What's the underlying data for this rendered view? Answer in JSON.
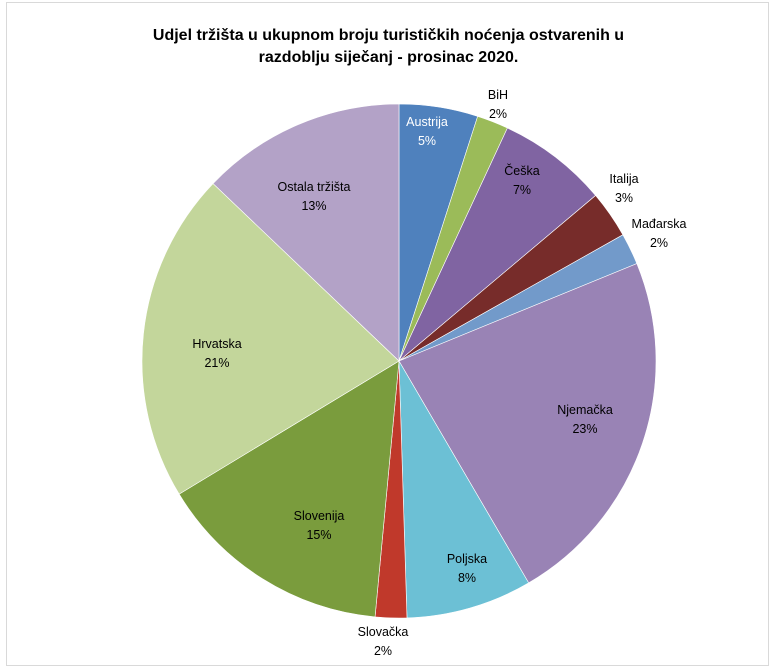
{
  "chart_data": {
    "type": "pie",
    "title_lines": [
      "Udjel tržišta u ukupnom broju turističkih noćenja ostvarenih u",
      "razdoblju siječanj - prosinac 2020."
    ],
    "slices": [
      {
        "name": "Austrija",
        "value": 5,
        "label": "5%",
        "color": "#4f81bd"
      },
      {
        "name": "BiH",
        "value": 2,
        "label": "2%",
        "color": "#9bbb59"
      },
      {
        "name": "Češka",
        "value": 7,
        "label": "7%",
        "color": "#8064a2"
      },
      {
        "name": "Italija",
        "value": 3,
        "label": "3%",
        "color": "#772c2a"
      },
      {
        "name": "Mađarska",
        "value": 2,
        "label": "2%",
        "color": "#729aca"
      },
      {
        "name": "Njemačka",
        "value": 23,
        "label": "23%",
        "color": "#9983b5"
      },
      {
        "name": "Poljska",
        "value": 8,
        "label": "8%",
        "color": "#6cc0d5"
      },
      {
        "name": "Slovačka",
        "value": 2,
        "label": "2%",
        "color": "#c0392b"
      },
      {
        "name": "Slovenija",
        "value": 15,
        "label": "15%",
        "color": "#7a9c3d"
      },
      {
        "name": "Hrvatska",
        "value": 21,
        "label": "21%",
        "color": "#c3d69b"
      },
      {
        "name": "Ostala tržišta",
        "value": 13,
        "label": "13%",
        "color": "#b3a2c7"
      }
    ],
    "legend": "none"
  }
}
